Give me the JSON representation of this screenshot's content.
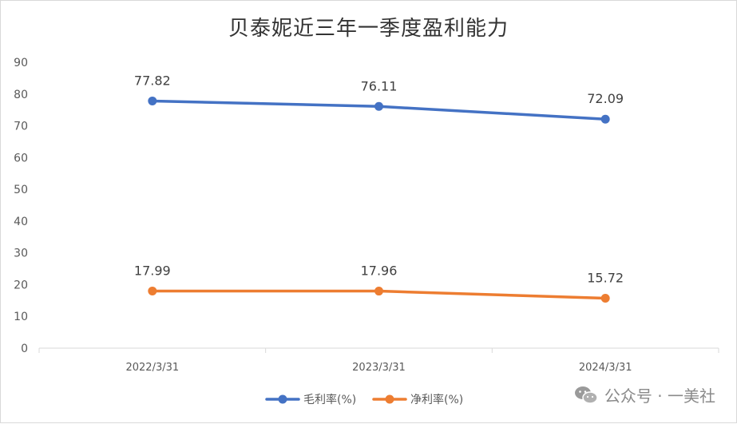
{
  "chart_data": {
    "type": "line",
    "title": "贝泰妮近三年一季度盈利能力",
    "categories": [
      "2022/3/31",
      "2023/3/31",
      "2024/3/31"
    ],
    "series": [
      {
        "name": "毛利率(%)",
        "values": [
          77.82,
          76.11,
          72.09
        ],
        "color": "#4472C4"
      },
      {
        "name": "净利率(%)",
        "values": [
          17.99,
          17.96,
          15.72
        ],
        "color": "#ED7D31"
      }
    ],
    "ylim": [
      0,
      90
    ],
    "yticks": [
      "0",
      "10",
      "20",
      "30",
      "40",
      "50",
      "60",
      "70",
      "80",
      "90"
    ],
    "data_labels": {
      "series0": [
        "77.82",
        "76.11",
        "72.09"
      ],
      "series1": [
        "17.99",
        "17.96",
        "15.72"
      ]
    },
    "legend_position": "bottom",
    "grid": false
  },
  "watermark": {
    "text": "公众号 · 一美社",
    "icon": "wechat-icon",
    "color": "#8a8a8a"
  }
}
